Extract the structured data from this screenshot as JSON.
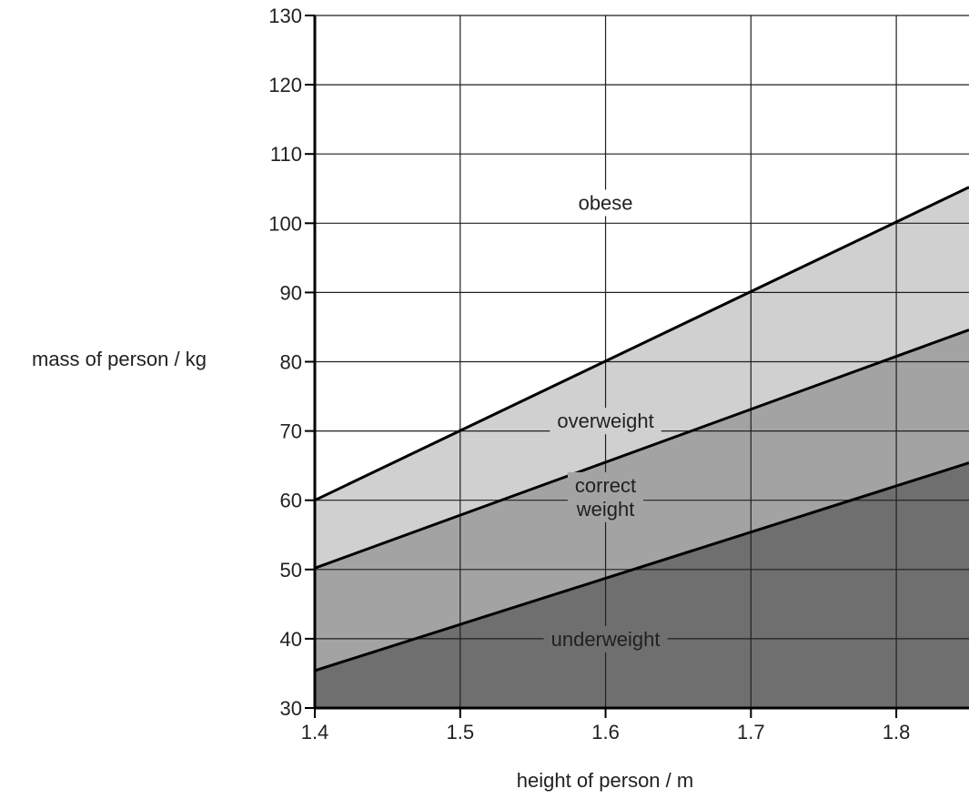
{
  "chart_data": {
    "type": "area",
    "title": "",
    "xlabel": "height of person / m",
    "ylabel": "mass of person / kg",
    "xlim": [
      1.4,
      1.85
    ],
    "ylim": [
      30,
      130
    ],
    "x_ticks": [
      1.4,
      1.5,
      1.6,
      1.7,
      1.8
    ],
    "x_tick_labels": [
      "1.4",
      "1.5",
      "1.6",
      "1.7",
      "1.8"
    ],
    "y_ticks": [
      30,
      40,
      50,
      60,
      70,
      80,
      90,
      100,
      110,
      120,
      130
    ],
    "y_tick_labels": [
      "30",
      "40",
      "50",
      "60",
      "70",
      "80",
      "90",
      "100",
      "110",
      "120",
      "130"
    ],
    "grid": true,
    "boundaries": [
      {
        "x": [
          1.4,
          1.85
        ],
        "y": [
          60,
          105.2
        ]
      },
      {
        "x": [
          1.4,
          1.85
        ],
        "y": [
          50.2,
          84.6
        ]
      },
      {
        "x": [
          1.4,
          1.85
        ],
        "y": [
          35.4,
          65.4
        ]
      }
    ],
    "regions": [
      {
        "name": "obese",
        "color": "#ffffff",
        "label_at": [
          1.6,
          103
        ]
      },
      {
        "name": "overweight",
        "color": "#d0d0d0",
        "label_at": [
          1.6,
          71.5
        ]
      },
      {
        "name": "correct weight",
        "color": "#a3a3a3",
        "label_lines": [
          "correct",
          "weight"
        ],
        "label_at": [
          1.6,
          60.5
        ]
      },
      {
        "name": "underweight",
        "color": "#6f6f6f",
        "label_at": [
          1.6,
          40
        ]
      }
    ]
  }
}
